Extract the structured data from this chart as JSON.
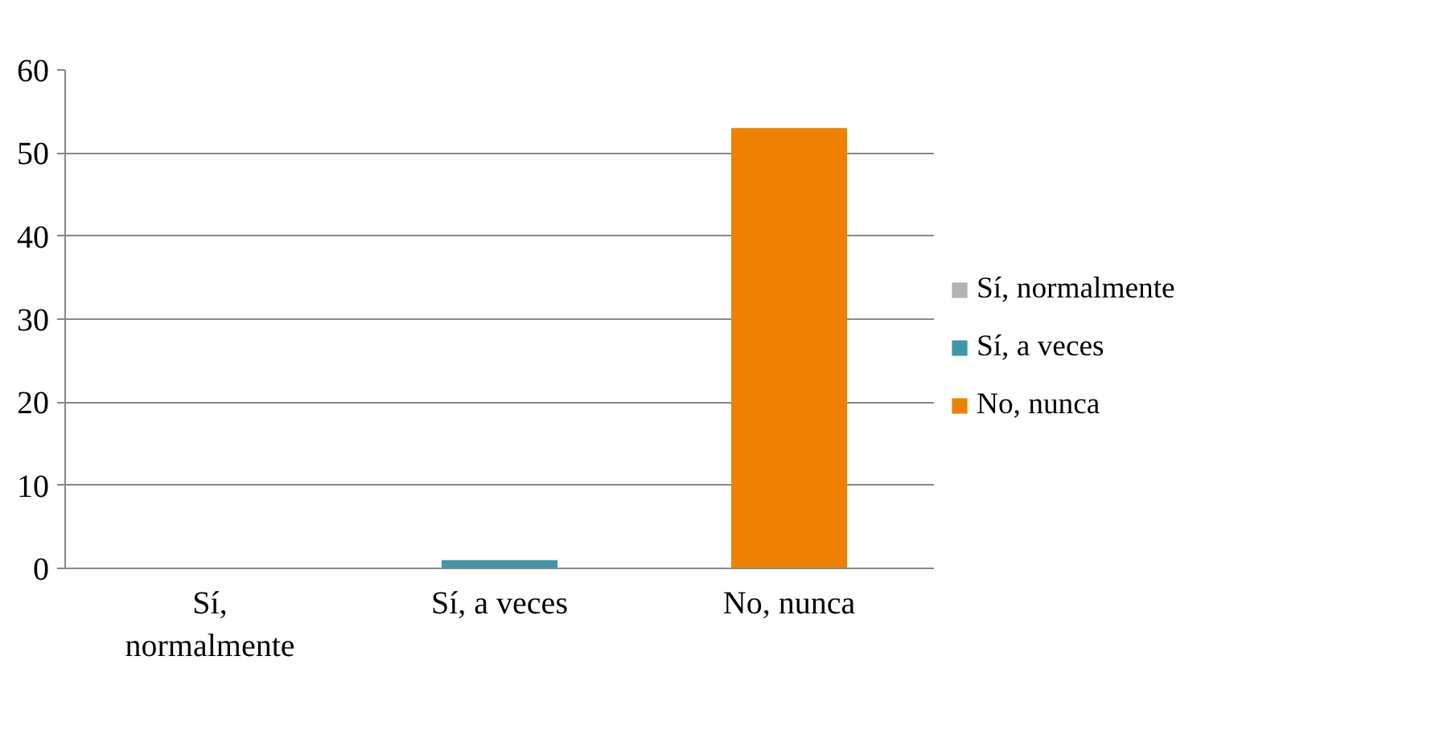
{
  "chart_data": {
    "type": "bar",
    "categories": [
      "Sí, normalmente",
      "Sí, a veces",
      "No, nunca"
    ],
    "series": [
      {
        "name": "Sí, normalmente",
        "color": "#b3b3b3",
        "values": [
          0,
          null,
          null
        ]
      },
      {
        "name": "Sí, a veces",
        "color": "#3f97a8",
        "values": [
          null,
          1,
          null
        ]
      },
      {
        "name": "No, nunca",
        "color": "#ee8200",
        "values": [
          null,
          null,
          53
        ]
      }
    ],
    "ylim": [
      0,
      60
    ],
    "yticks": [
      0,
      10,
      20,
      30,
      40,
      50,
      60
    ],
    "grid": "y",
    "legend": "right"
  }
}
